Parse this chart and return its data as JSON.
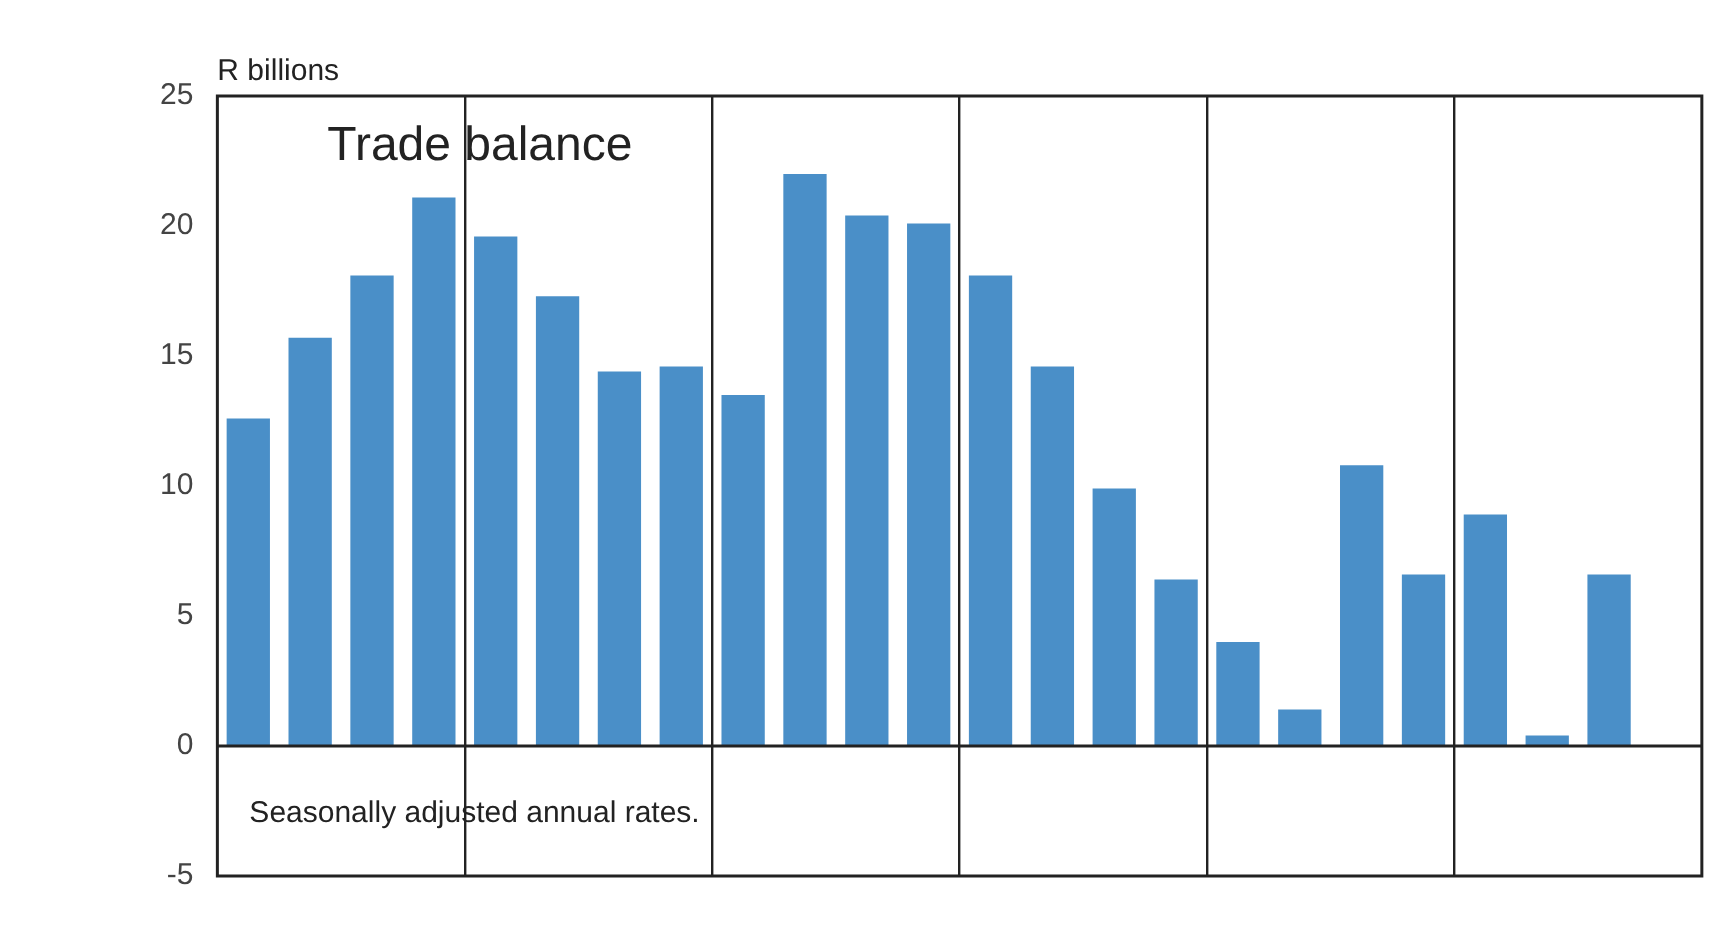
{
  "chart_data": {
    "type": "bar",
    "title": "Trade balance",
    "ylabel": "R billions",
    "annotations": [
      "Seasonally adjusted annual rates."
    ],
    "categories": [
      null,
      null,
      null,
      null,
      null,
      null,
      null,
      null,
      null,
      null,
      null,
      null,
      null,
      null,
      null,
      null,
      null,
      null,
      null,
      null,
      null,
      null,
      null
    ],
    "values": [
      12.6,
      15.7,
      18.1,
      21.1,
      19.6,
      17.3,
      14.4,
      14.6,
      13.5,
      22.0,
      20.4,
      20.1,
      18.1,
      14.6,
      9.9,
      6.4,
      4.0,
      1.4,
      10.8,
      6.6,
      8.9,
      0.4,
      6.6
    ],
    "color": "#4a8fc8",
    "ylim": [
      -5,
      25
    ],
    "yticks": [
      -5,
      0,
      5,
      10,
      15,
      20,
      25
    ],
    "grid": "x",
    "legend": false,
    "tick_labels": "y"
  }
}
